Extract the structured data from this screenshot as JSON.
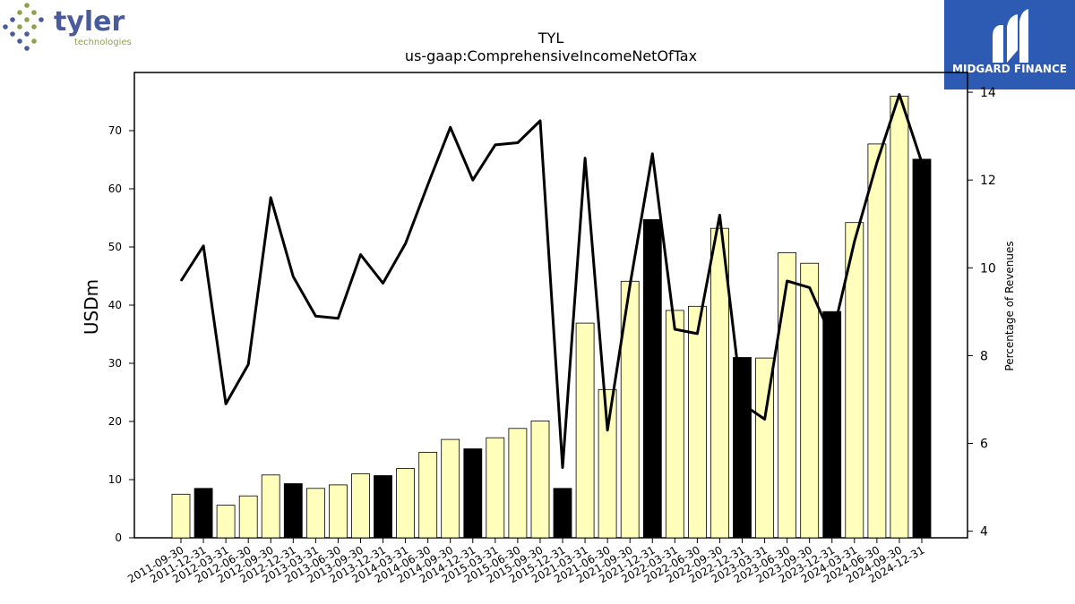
{
  "header": {
    "company_logo": {
      "name": "tyler",
      "subtitle": "technologies",
      "color": "#4a5b9c",
      "dot_colors": [
        "#4a5b9c",
        "#8fa14a"
      ]
    },
    "brand_logo": {
      "text": "MIDGARD FINANCE",
      "background": "#2d5bb3"
    }
  },
  "chart_data": {
    "type": "bar",
    "title": "TYL",
    "subtitle": "us-gaap:ComprehensiveIncomeNetOfTax",
    "ylabel": "USDm",
    "y2label": "Percentage of Revenues",
    "ylim": [
      0,
      80
    ],
    "y2lim": [
      3.85,
      14.45
    ],
    "yticks": [
      0,
      10,
      20,
      30,
      40,
      50,
      60,
      70
    ],
    "y2ticks": [
      4,
      6,
      8,
      10,
      12,
      14
    ],
    "categories": [
      "2011-09-30",
      "2011-12-31",
      "2012-03-31",
      "2012-06-30",
      "2012-09-30",
      "2012-12-31",
      "2013-03-31",
      "2013-06-30",
      "2013-09-30",
      "2013-12-31",
      "2014-03-31",
      "2014-06-30",
      "2014-09-30",
      "2014-12-31",
      "2015-03-31",
      "2015-06-30",
      "2015-09-30",
      "2015-12-31",
      "2021-03-31",
      "2021-06-30",
      "2021-09-30",
      "2021-12-31",
      "2022-03-31",
      "2022-06-30",
      "2022-09-30",
      "2022-12-31",
      "2023-03-31",
      "2023-06-30",
      "2023-09-30",
      "2023-12-31",
      "2024-03-31",
      "2024-06-30",
      "2024-09-30",
      "2024-12-31"
    ],
    "series": [
      {
        "type": "bar",
        "values": [
          7.5,
          8.5,
          5.6,
          7.2,
          10.8,
          9.3,
          8.5,
          9.1,
          11.0,
          10.7,
          11.9,
          14.7,
          16.9,
          15.3,
          17.2,
          18.8,
          20.1,
          8.5,
          36.9,
          25.5,
          44.1,
          54.7,
          39.1,
          39.8,
          53.2,
          31.0,
          30.9,
          49.0,
          47.2,
          38.9,
          54.2,
          67.7,
          75.9,
          65.1
        ],
        "highlight": [
          false,
          true,
          false,
          false,
          false,
          true,
          false,
          false,
          false,
          true,
          false,
          false,
          false,
          true,
          false,
          false,
          false,
          true,
          false,
          false,
          false,
          true,
          false,
          false,
          false,
          true,
          false,
          false,
          false,
          true,
          false,
          false,
          false,
          true
        ],
        "color": "#ffffbb",
        "highlight_color": "#000000"
      },
      {
        "type": "line",
        "axis": "right",
        "values": [
          9.7,
          10.5,
          6.9,
          7.8,
          11.6,
          9.8,
          8.9,
          8.85,
          10.3,
          9.65,
          10.55,
          11.9,
          13.2,
          12.0,
          12.8,
          12.85,
          13.35,
          5.45,
          12.5,
          6.3,
          9.6,
          12.6,
          8.6,
          8.5,
          11.2,
          6.9,
          6.55,
          9.7,
          9.55,
          8.4,
          10.6,
          12.4,
          13.95,
          12.4
        ],
        "color": "#000000"
      }
    ],
    "grid": false
  }
}
